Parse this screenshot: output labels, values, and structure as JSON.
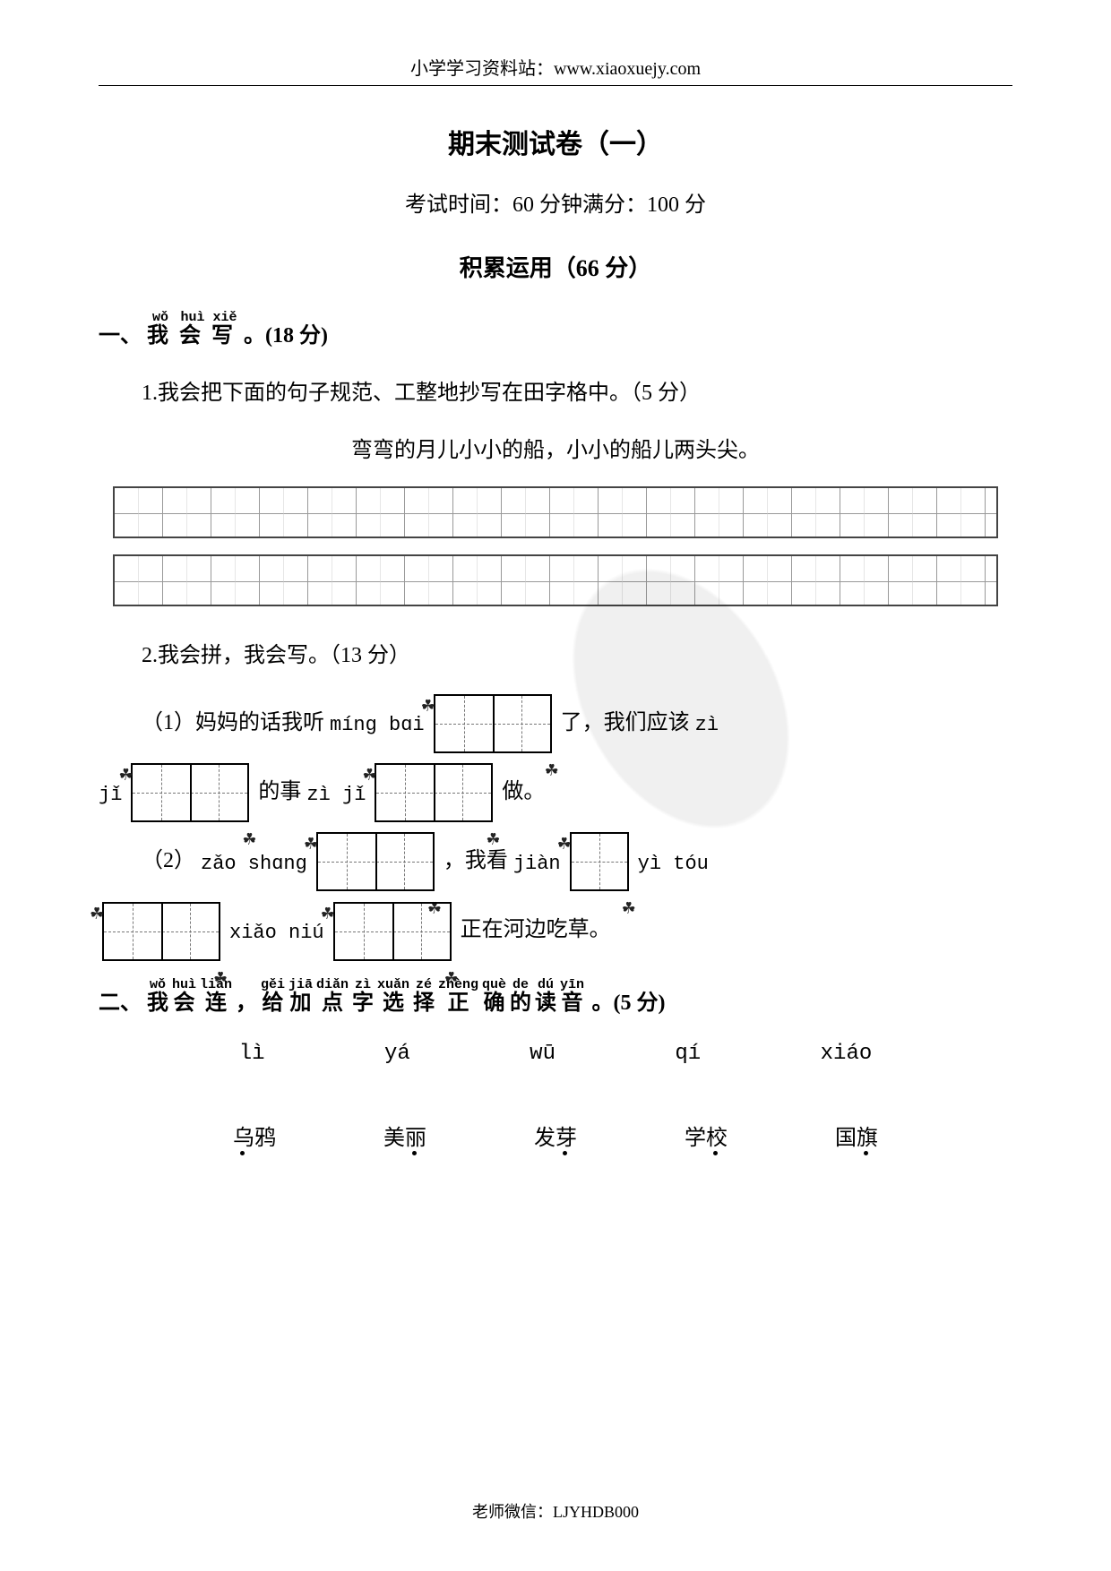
{
  "header": {
    "site_label": "小学学习资料站：www.xiaoxuejy.com"
  },
  "title": "期末测试卷（一）",
  "exam_info": "考试时间：60 分钟满分：100 分",
  "section_a": {
    "title": "积累运用（66 分）"
  },
  "q1": {
    "number": "一、",
    "ruby_chars": [
      "我",
      "会",
      "写"
    ],
    "ruby_py": [
      "wǒ",
      "huì",
      "xiě"
    ],
    "tail": "。(18 分)",
    "sub1": {
      "label": "1.我会把下面的句子规范、工整地抄写在田字格中。（5 分）",
      "sentence": "弯弯的月儿小小的船，小小的船儿两头尖。"
    },
    "sub2": {
      "label": "2.我会拼，我会写。（13 分）",
      "line1": {
        "prefix": "（1）妈妈的话我听",
        "py1": "míng  bɑi",
        "mid1": "了，我们应该",
        "py2": "zì",
        "py3": "jǐ",
        "mid2": "的事",
        "py4": "zì  jǐ",
        "tail": "做。"
      },
      "line2": {
        "prefix": "（2）",
        "py1": "zǎo shɑng",
        "mid1": "，我看",
        "py2": "jiàn",
        "py3": "yì  tóu",
        "py4": "xiǎo niú",
        "tail": "正在河边吃草。"
      }
    }
  },
  "q2": {
    "number": "二、",
    "ruby_chars": [
      "我",
      "会",
      "连",
      "，",
      "给",
      "加",
      "点",
      "字",
      "选",
      "择",
      "正",
      "确",
      "的",
      "读",
      "音"
    ],
    "ruby_py": [
      "wǒ",
      "huì",
      "lián",
      "",
      "gěi",
      "jiā",
      "diǎn",
      "zì",
      "xuǎn",
      "zé",
      "zhèng",
      "què",
      "de",
      "dú",
      "yīn"
    ],
    "tail": "。(5 分)",
    "pinyin_row": [
      "lì",
      "yá",
      "wū",
      "qí",
      "xiáo"
    ],
    "word_row": [
      "乌鸦",
      "美丽",
      "发芽",
      "学校",
      "国旗"
    ],
    "dot_index": [
      0,
      1,
      1,
      1,
      1
    ]
  },
  "footer": {
    "text": "老师微信：LJYHDB000"
  },
  "colors": {
    "text": "#000000",
    "bg": "#ffffff",
    "grid_border": "#444444",
    "grid_dash": "#888888"
  },
  "typography": {
    "body_pt": 24,
    "title_pt": 30,
    "header_pt": 20,
    "pinyin_font": "Courier New"
  }
}
